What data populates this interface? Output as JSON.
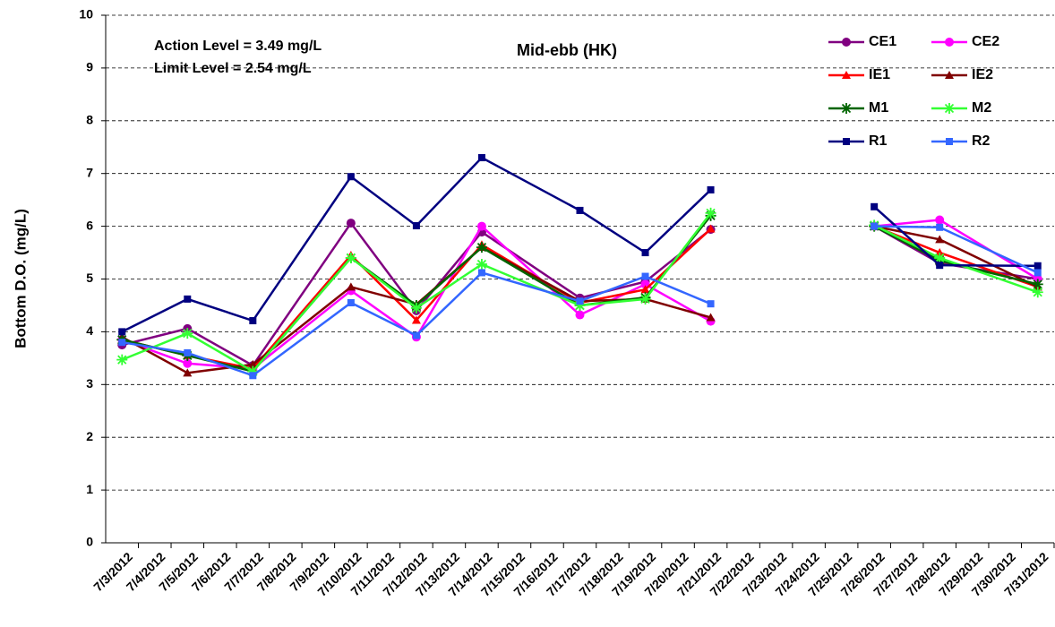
{
  "chart_data": {
    "type": "line",
    "title": "Mid-ebb (HK)",
    "annotations": [
      "Action Level = 3.49 mg/L",
      "Limit Level = 2.54 mg/L"
    ],
    "y_label": "Bottom D.O. (mg/L)",
    "categories": [
      "7/3/2012",
      "7/4/2012",
      "7/5/2012",
      "7/6/2012",
      "7/7/2012",
      "7/8/2012",
      "7/9/2012",
      "7/10/2012",
      "7/11/2012",
      "7/12/2012",
      "7/13/2012",
      "7/14/2012",
      "7/15/2012",
      "7/16/2012",
      "7/17/2012",
      "7/18/2012",
      "7/19/2012",
      "7/20/2012",
      "7/21/2012",
      "7/22/2012",
      "7/23/2012",
      "7/24/2012",
      "7/25/2012",
      "7/26/2012",
      "7/27/2012",
      "7/28/2012",
      "7/29/2012",
      "7/30/2012",
      "7/31/2012"
    ],
    "x": [
      "7/3/2012",
      "7/5/2012",
      "7/7/2012",
      "7/10/2012",
      "7/12/2012",
      "7/14/2012",
      "7/17/2012",
      "7/19/2012",
      "7/21/2012",
      "7/24/2012",
      "7/26/2012",
      "7/28/2012",
      "7/31/2012"
    ],
    "series": [
      {
        "name": "CE1",
        "color": "#800080",
        "marker": "circle",
        "values": [
          3.75,
          4.06,
          3.36,
          6.06,
          4.4,
          5.89,
          4.64,
          4.95,
          5.94,
          null,
          6.0,
          5.3,
          5.0
        ]
      },
      {
        "name": "CE2",
        "color": "#ff00ff",
        "marker": "circle",
        "values": [
          3.85,
          3.4,
          3.3,
          4.78,
          3.9,
          6.0,
          4.32,
          4.9,
          4.2,
          null,
          6.0,
          6.12,
          5.0
        ]
      },
      {
        "name": "IE1",
        "color": "#ff0000",
        "marker": "triangle",
        "values": [
          3.85,
          3.55,
          3.3,
          5.45,
          4.22,
          5.65,
          4.55,
          4.8,
          5.95,
          null,
          6.0,
          5.5,
          4.85
        ]
      },
      {
        "name": "IE2",
        "color": "#800000",
        "marker": "triangle",
        "values": [
          3.9,
          3.22,
          3.38,
          4.85,
          4.52,
          5.6,
          4.58,
          4.62,
          4.27,
          null,
          6.0,
          5.75,
          4.85
        ]
      },
      {
        "name": "M1",
        "color": "#006400",
        "marker": "star",
        "values": [
          3.85,
          3.55,
          3.25,
          5.4,
          4.5,
          5.6,
          4.5,
          4.65,
          6.2,
          null,
          6.0,
          5.35,
          4.9
        ]
      },
      {
        "name": "M2",
        "color": "#33ff33",
        "marker": "star",
        "values": [
          3.47,
          3.97,
          3.25,
          5.4,
          4.45,
          5.28,
          4.5,
          4.62,
          6.25,
          null,
          6.02,
          5.4,
          4.75
        ]
      },
      {
        "name": "R1",
        "color": "#000080",
        "marker": "square",
        "values": [
          4.0,
          4.62,
          4.21,
          6.94,
          6.01,
          7.3,
          6.3,
          5.5,
          6.69,
          null,
          6.37,
          5.26,
          5.25
        ]
      },
      {
        "name": "R2",
        "color": "#3366ff",
        "marker": "square",
        "values": [
          3.8,
          3.6,
          3.17,
          4.55,
          3.93,
          5.12,
          4.58,
          5.05,
          4.53,
          null,
          6.0,
          5.98,
          5.12
        ]
      }
    ],
    "ylim": [
      0,
      10
    ],
    "yticks": [
      0,
      1,
      2,
      3,
      4,
      5,
      6,
      7,
      8,
      9,
      10
    ],
    "grid": true,
    "legend": "top-right"
  }
}
